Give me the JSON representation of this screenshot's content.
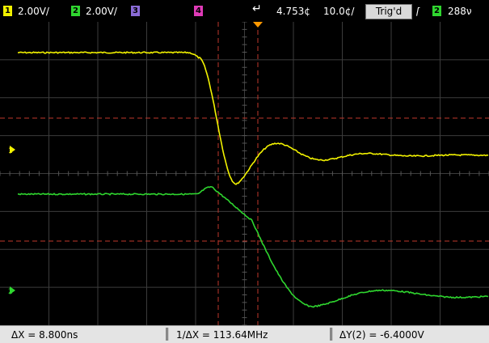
{
  "status_bar": {
    "ch1": {
      "number": "1",
      "scale": "2.00V/",
      "color": "#f2f200"
    },
    "ch2": {
      "number": "2",
      "scale": "2.00V/",
      "color": "#2fd62f"
    },
    "ch3": {
      "number": "3",
      "color": "#8a6bd6"
    },
    "ch4": {
      "number": "4",
      "color": "#e03bb8"
    },
    "delay": "4.753¢",
    "timebase": "10.0¢/",
    "trigger_state": "Trig'd",
    "trigger_slope_icon": "rising-edge-icon",
    "trigger_source": "2",
    "trigger_level": "288ν"
  },
  "measurements": {
    "delta_x": "ΔX = 8.800ns",
    "inverse_delta_x": "1/ΔX = 113.64MHz",
    "delta_y": "ΔY(2) = -6.4000V"
  },
  "markers": {
    "ch1_ground": "1",
    "ch2_ground": "2",
    "trigger_position_icon": "trigger-position-icon"
  },
  "colors": {
    "background": "#000000",
    "grid": "#3c3c3c",
    "ch1_trace": "#f2f200",
    "ch2_trace": "#2fd62f",
    "cursor": "#c0392b"
  }
}
